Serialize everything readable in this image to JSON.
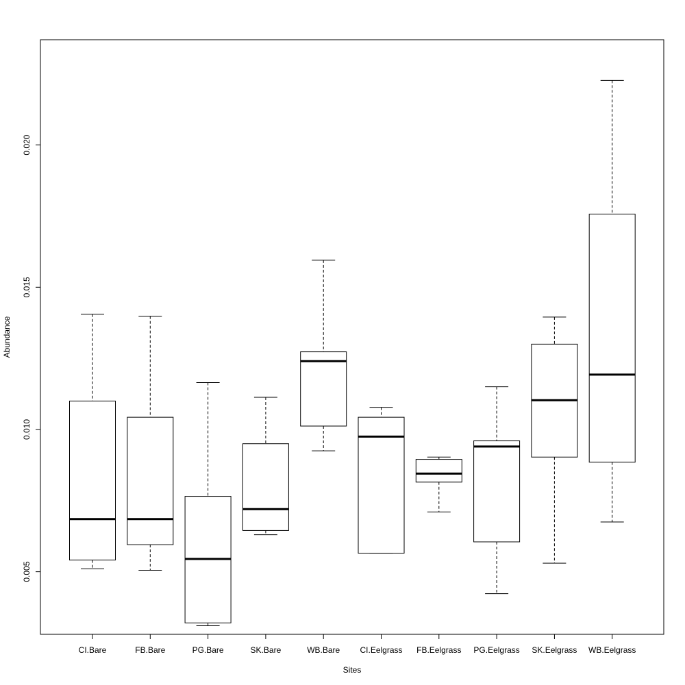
{
  "chart_data": {
    "type": "box",
    "title": "",
    "xlabel": "Sites",
    "ylabel": "Abundance",
    "ylim": [
      0.0028,
      0.0237
    ],
    "yticks": [
      0.005,
      0.01,
      0.015,
      0.02
    ],
    "ytick_labels": [
      "0.005",
      "0.010",
      "0.015",
      "0.020"
    ],
    "categories": [
      "CI.Bare",
      "FB.Bare",
      "PG.Bare",
      "SK.Bare",
      "WB.Bare",
      "CI.Eelgrass",
      "FB.Eelgrass",
      "PG.Eelgrass",
      "SK.Eelgrass",
      "WB.Eelgrass"
    ],
    "boxes": [
      {
        "whisker_low": 0.0051,
        "q1": 0.00541,
        "median": 0.00685,
        "q3": 0.011,
        "whisker_high": 0.01405
      },
      {
        "whisker_low": 0.00505,
        "q1": 0.00595,
        "median": 0.00685,
        "q3": 0.01043,
        "whisker_high": 0.01398
      },
      {
        "whisker_low": 0.0031,
        "q1": 0.0032,
        "median": 0.00545,
        "q3": 0.00765,
        "whisker_high": 0.01165
      },
      {
        "whisker_low": 0.0063,
        "q1": 0.00645,
        "median": 0.0072,
        "q3": 0.0095,
        "whisker_high": 0.01113
      },
      {
        "whisker_low": 0.00925,
        "q1": 0.01012,
        "median": 0.0124,
        "q3": 0.01273,
        "whisker_high": 0.01595
      },
      {
        "whisker_low": 0.00565,
        "q1": 0.00565,
        "median": 0.00975,
        "q3": 0.01043,
        "whisker_high": 0.01078
      },
      {
        "whisker_low": 0.0071,
        "q1": 0.00815,
        "median": 0.00845,
        "q3": 0.00895,
        "whisker_high": 0.00903
      },
      {
        "whisker_low": 0.00423,
        "q1": 0.00605,
        "median": 0.0094,
        "q3": 0.0096,
        "whisker_high": 0.0115
      },
      {
        "whisker_low": 0.0053,
        "q1": 0.00903,
        "median": 0.01103,
        "q3": 0.013,
        "whisker_high": 0.01395
      },
      {
        "whisker_low": 0.00675,
        "q1": 0.00885,
        "median": 0.01193,
        "q3": 0.01757,
        "whisker_high": 0.02227
      }
    ]
  }
}
